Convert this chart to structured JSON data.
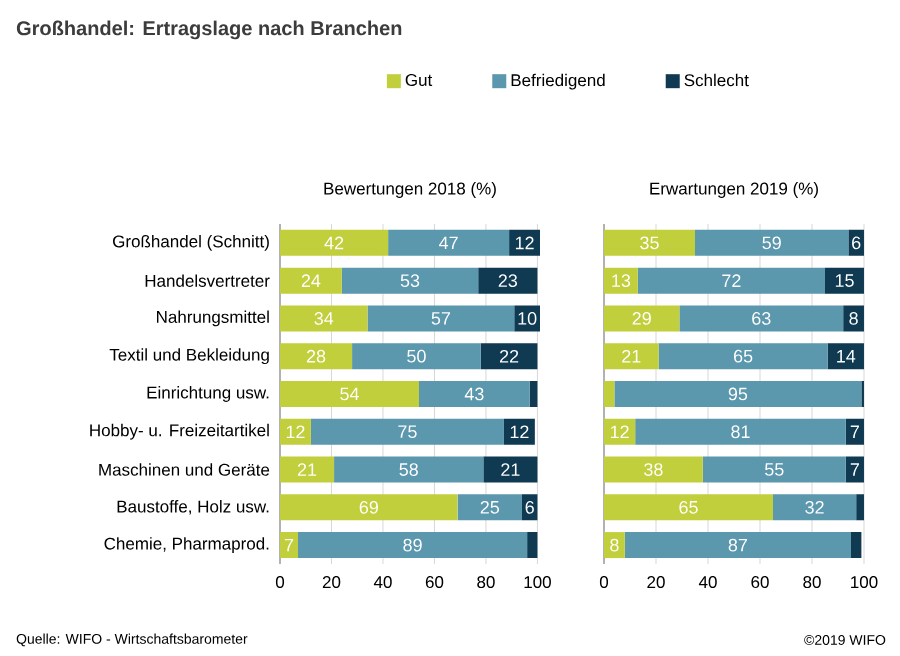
{
  "chart_data": [
    {
      "type": "bar",
      "orientation": "horizontal",
      "stacked": true,
      "title": "Großhandel: Ertragslage nach Branchen",
      "subtitle": "Bewertungen 2018 (%)",
      "categories": [
        "Großhandel (Schnitt)",
        "Handelsvertreter",
        "Nahrungsmittel",
        "Textil und Bekleidung",
        "Einrichtung usw.",
        "Hobby- u. Freizeitartikel",
        "Maschinen und Geräte",
        "Baustoffe, Holz usw.",
        "Chemie, Pharmaprod."
      ],
      "series": [
        {
          "name": "Gut",
          "color": "#c2cf3c",
          "values": [
            42,
            24,
            34,
            28,
            54,
            12,
            21,
            69,
            7
          ],
          "value_labels": [
            "42",
            "24",
            "34",
            "28",
            "54",
            "12",
            "21",
            "69",
            "7"
          ]
        },
        {
          "name": "Befriedigend",
          "color": "#5b97ad",
          "values": [
            47,
            53,
            57,
            50,
            43,
            75,
            58,
            25,
            89
          ],
          "value_labels": [
            "47",
            "53",
            "57",
            "50",
            "43",
            "75",
            "58",
            "25",
            "89"
          ]
        },
        {
          "name": "Schlecht",
          "color": "#0f3a52",
          "values": [
            12,
            23,
            10,
            22,
            3,
            12,
            21,
            6,
            4
          ],
          "value_labels": [
            "12",
            "23",
            "10",
            "22",
            null,
            "12",
            "21",
            "6",
            null
          ]
        }
      ],
      "xlim": [
        0,
        101
      ],
      "xticks": [
        0,
        20,
        40,
        60,
        80,
        100
      ],
      "grid": "x",
      "legend": "top",
      "annotations": [
        "Quelle: WIFO - Wirtschaftsbarometer",
        "©2019 WIFO"
      ]
    },
    {
      "type": "bar",
      "orientation": "horizontal",
      "stacked": true,
      "subtitle": "Erwartungen 2019 (%)",
      "categories": [
        null,
        null,
        null,
        null,
        null,
        null,
        null,
        null,
        null
      ],
      "series": [
        {
          "color": "#c2cf3c",
          "values": [
            35,
            13,
            29,
            21,
            4,
            12,
            38,
            65,
            8
          ],
          "value_labels": [
            "35",
            "13",
            "29",
            "21",
            null,
            "12",
            "38",
            "65",
            "8"
          ]
        },
        {
          "color": "#5b97ad",
          "values": [
            59,
            72,
            63,
            65,
            95,
            81,
            55,
            32,
            87
          ],
          "value_labels": [
            "59",
            "72",
            "63",
            "65",
            "95",
            "81",
            "55",
            "32",
            "87"
          ]
        },
        {
          "color": "#0f3a52",
          "values": [
            6,
            15,
            8,
            14,
            1,
            7,
            7,
            3,
            4
          ],
          "value_labels": [
            "6",
            "15",
            "8",
            "14",
            null,
            "7",
            "7",
            null,
            null
          ]
        }
      ],
      "xlim": [
        0,
        100
      ],
      "xticks": [
        0,
        20,
        40,
        60,
        80,
        100
      ],
      "grid": "x",
      "tick_labels": "x"
    }
  ]
}
